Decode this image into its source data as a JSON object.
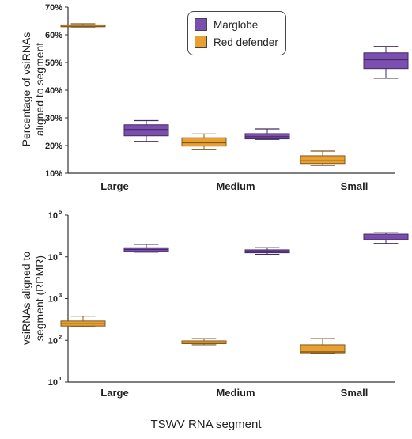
{
  "colors": {
    "Marglobe": "#7B4FB0",
    "Red defender": "#E8A033",
    "axis": "#333333"
  },
  "xlabel": "TSWV RNA segment",
  "chart_data": [
    {
      "type": "box",
      "ylabel": "Percentage of vsiRNAs aligned to segment",
      "ylabel_lines": [
        "Percentage of vsiRNAs",
        "aligned to segment"
      ],
      "ylim": [
        10,
        70
      ],
      "yticks": [
        10,
        20,
        30,
        40,
        50,
        60,
        70
      ],
      "ytick_labels": [
        "10%",
        "20%",
        "30%",
        "40%",
        "50%",
        "60%",
        "70%"
      ],
      "categories": [
        "Large",
        "Medium",
        "Small"
      ],
      "legend": {
        "position": "top-center",
        "entries": [
          "Marglobe",
          "Red defender"
        ]
      },
      "series": [
        {
          "name": "Red defender",
          "boxes": [
            {
              "category": "Large",
              "min": 62.8,
              "q1": 62.9,
              "median": 63.1,
              "q3": 63.6,
              "max": 64.0
            },
            {
              "category": "Medium",
              "min": 18.5,
              "q1": 19.8,
              "median": 21.0,
              "q3": 22.8,
              "max": 24.2
            },
            {
              "category": "Small",
              "min": 12.8,
              "q1": 13.5,
              "median": 14.5,
              "q3": 16.3,
              "max": 18.0
            }
          ]
        },
        {
          "name": "Marglobe",
          "boxes": [
            {
              "category": "Large",
              "min": 21.5,
              "q1": 23.5,
              "median": 25.8,
              "q3": 27.5,
              "max": 29.0
            },
            {
              "category": "Medium",
              "min": 22.2,
              "q1": 22.4,
              "median": 23.2,
              "q3": 24.3,
              "max": 26.0
            },
            {
              "category": "Small",
              "min": 44.3,
              "q1": 47.8,
              "median": 51.0,
              "q3": 53.5,
              "max": 55.8
            }
          ]
        }
      ]
    },
    {
      "type": "box",
      "ylabel": "vsiRNAs aligned to segment (RPMR)",
      "ylabel_lines": [
        "vsiRNAs aligned to",
        "segment (RPMR)"
      ],
      "yscale": "log",
      "ylim": [
        10,
        100000
      ],
      "yticks": [
        10,
        100,
        1000,
        10000,
        100000
      ],
      "ytick_labels": [
        {
          "base": "10",
          "exp": "1"
        },
        {
          "base": "10",
          "exp": "2"
        },
        {
          "base": "10",
          "exp": "3"
        },
        {
          "base": "10",
          "exp": "4"
        },
        {
          "base": "10",
          "exp": "5"
        }
      ],
      "categories": [
        "Large",
        "Medium",
        "Small"
      ],
      "series": [
        {
          "name": "Red defender",
          "boxes": [
            {
              "category": "Large",
              "min": 210,
              "q1": 220,
              "median": 250,
              "q3": 290,
              "max": 380
            },
            {
              "category": "Medium",
              "min": 78,
              "q1": 83,
              "median": 90,
              "q3": 97,
              "max": 110
            },
            {
              "category": "Small",
              "min": 48,
              "q1": 50,
              "median": 53,
              "q3": 78,
              "max": 110
            }
          ]
        },
        {
          "name": "Marglobe",
          "boxes": [
            {
              "category": "Large",
              "min": 13000,
              "q1": 13500,
              "median": 15000,
              "q3": 16500,
              "max": 20000
            },
            {
              "category": "Medium",
              "min": 11500,
              "q1": 12500,
              "median": 13500,
              "q3": 14700,
              "max": 16500
            },
            {
              "category": "Small",
              "min": 21000,
              "q1": 26000,
              "median": 30000,
              "q3": 35000,
              "max": 38000
            }
          ]
        }
      ]
    }
  ]
}
